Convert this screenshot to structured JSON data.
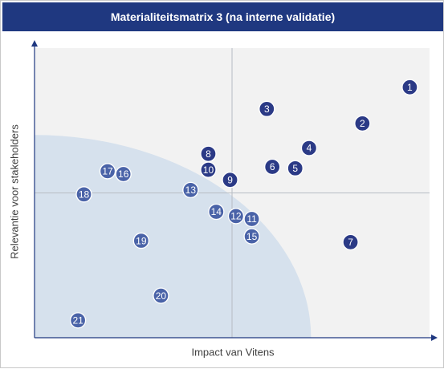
{
  "chart_data": {
    "type": "scatter",
    "title": "Materialiteitsmatrix 3 (na interne validatie)",
    "xlabel": "Impact van Vitens",
    "ylabel": "Relevantie voor stakeholders",
    "xlim": [
      0,
      10
    ],
    "ylim": [
      0,
      10
    ],
    "grid": false,
    "quadrant_dividers": {
      "x": 5,
      "y": 5
    },
    "threshold_region": {
      "shape": "quarter-circle",
      "center": [
        0,
        0
      ],
      "radius": 7
    },
    "colors": {
      "plot_background": "#f2f2f2",
      "region": "#d6e1ed",
      "marker_inside": "#4a63a8",
      "marker_outside": "#2b3a86",
      "marker_text": "#ffffff",
      "title_bar": "#1f3880"
    },
    "points": [
      {
        "label": "1",
        "x": 9.5,
        "y": 8.65
      },
      {
        "label": "2",
        "x": 8.3,
        "y": 7.4
      },
      {
        "label": "3",
        "x": 5.88,
        "y": 7.9
      },
      {
        "label": "4",
        "x": 6.95,
        "y": 6.55
      },
      {
        "label": "5",
        "x": 6.6,
        "y": 5.85
      },
      {
        "label": "6",
        "x": 6.02,
        "y": 5.9
      },
      {
        "label": "7",
        "x": 8.0,
        "y": 3.3
      },
      {
        "label": "8",
        "x": 4.4,
        "y": 6.35
      },
      {
        "label": "9",
        "x": 4.95,
        "y": 5.45
      },
      {
        "label": "10",
        "x": 4.4,
        "y": 5.8
      },
      {
        "label": "11",
        "x": 5.5,
        "y": 4.1
      },
      {
        "label": "12",
        "x": 5.1,
        "y": 4.2
      },
      {
        "label": "13",
        "x": 3.95,
        "y": 5.1
      },
      {
        "label": "14",
        "x": 4.6,
        "y": 4.35
      },
      {
        "label": "15",
        "x": 5.5,
        "y": 3.5
      },
      {
        "label": "16",
        "x": 2.25,
        "y": 5.65
      },
      {
        "label": "17",
        "x": 1.85,
        "y": 5.75
      },
      {
        "label": "18",
        "x": 1.25,
        "y": 4.95
      },
      {
        "label": "19",
        "x": 2.7,
        "y": 3.35
      },
      {
        "label": "20",
        "x": 3.2,
        "y": 1.45
      },
      {
        "label": "21",
        "x": 1.1,
        "y": 0.6
      }
    ]
  }
}
